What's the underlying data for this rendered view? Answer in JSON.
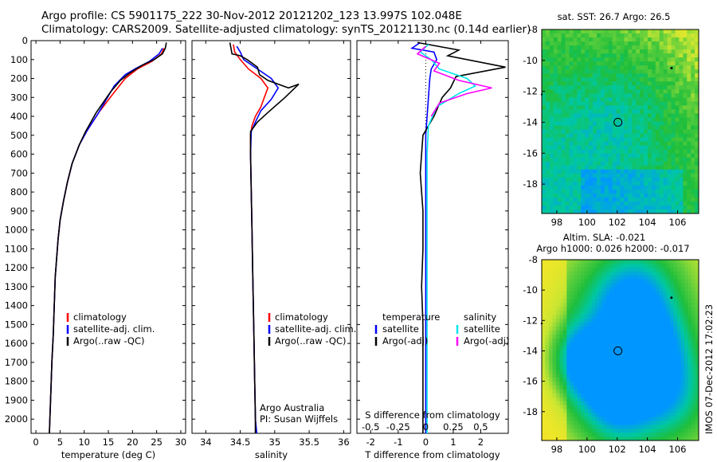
{
  "title_line1": "Argo profile: CS 5901175_222 30-Nov-2012 20121202_123 13.997S 102.048E",
  "title_line2": "Climatology: CARS2009. Satellite-adjusted climatology: synTS_20121130.nc (0.14d earlier)",
  "colors": {
    "climatology": "#ff0000",
    "satellite": "#0000ff",
    "argo": "#000000",
    "salinity_satellite": "#00e5ee",
    "salinity_argo": "#ff00ff"
  },
  "chart_data": [
    {
      "id": "temperature",
      "type": "line",
      "xlabel": "temperature (deg C)",
      "ylabel": "",
      "xlim": [
        -1,
        31
      ],
      "ylim": [
        2075,
        0
      ],
      "xticks": [
        0,
        5,
        10,
        15,
        20,
        25,
        30
      ],
      "yticks": [
        0,
        100,
        200,
        300,
        400,
        500,
        600,
        700,
        800,
        900,
        1000,
        1100,
        1200,
        1300,
        1400,
        1500,
        1600,
        1700,
        1800,
        1900,
        2000
      ],
      "legend": [
        "climatology",
        "satellite-adj. clim.",
        "Argo(..raw -QC)"
      ],
      "legend_position": "lower-middle",
      "series": [
        {
          "name": "climatology",
          "color": "#ff0000",
          "points": [
            [
              26.5,
              40
            ],
            [
              26,
              70
            ],
            [
              24,
              110
            ],
            [
              21,
              150
            ],
            [
              18.5,
              200
            ],
            [
              16,
              280
            ],
            [
              13,
              380
            ],
            [
              10.5,
              480
            ],
            [
              9,
              550
            ],
            [
              7.5,
              650
            ],
            [
              6.5,
              750
            ],
            [
              5.7,
              850
            ],
            [
              5,
              950
            ],
            [
              4.6,
              1050
            ],
            [
              4.3,
              1150
            ],
            [
              4,
              1250
            ],
            [
              3.8,
              1400
            ],
            [
              3.6,
              1550
            ],
            [
              3.3,
              1700
            ],
            [
              3.1,
              1850
            ],
            [
              2.9,
              2000
            ],
            [
              2.8,
              2075
            ]
          ]
        },
        {
          "name": "satellite-adj. clim.",
          "color": "#0000ff",
          "points": [
            [
              26.2,
              40
            ],
            [
              25.5,
              70
            ],
            [
              23.5,
              110
            ],
            [
              20.5,
              150
            ],
            [
              18.5,
              180
            ],
            [
              16.2,
              240
            ],
            [
              13,
              380
            ],
            [
              10.5,
              480
            ],
            [
              9,
              550
            ],
            [
              7.5,
              650
            ],
            [
              6.5,
              750
            ],
            [
              5.7,
              850
            ],
            [
              5,
              950
            ],
            [
              4.6,
              1050
            ],
            [
              4.3,
              1150
            ],
            [
              4,
              1250
            ],
            [
              3.8,
              1400
            ],
            [
              3.6,
              1550
            ],
            [
              3.3,
              1700
            ],
            [
              3.1,
              1850
            ],
            [
              2.9,
              2000
            ],
            [
              2.8,
              2075
            ]
          ]
        },
        {
          "name": "Argo(..raw -QC)",
          "color": "#000000",
          "points": [
            [
              27,
              10
            ],
            [
              26.8,
              40
            ],
            [
              26.2,
              70
            ],
            [
              24.5,
              100
            ],
            [
              22,
              130
            ],
            [
              19.5,
              170
            ],
            [
              17.5,
              210
            ],
            [
              15.5,
              270
            ],
            [
              12.5,
              380
            ],
            [
              10.3,
              480
            ],
            [
              9,
              550
            ],
            [
              7.5,
              650
            ],
            [
              6.5,
              750
            ],
            [
              5.7,
              850
            ],
            [
              5,
              950
            ],
            [
              4.6,
              1050
            ],
            [
              4.3,
              1150
            ],
            [
              4,
              1250
            ],
            [
              3.8,
              1400
            ],
            [
              3.6,
              1550
            ],
            [
              3.3,
              1700
            ],
            [
              3.1,
              1850
            ],
            [
              2.9,
              2000
            ],
            [
              2.8,
              2075
            ]
          ]
        }
      ]
    },
    {
      "id": "salinity",
      "type": "line",
      "xlabel": "salinity",
      "ylabel": "",
      "xlim": [
        33.8,
        36.1
      ],
      "ylim": [
        2075,
        0
      ],
      "xticks": [
        34,
        34.5,
        35,
        35.5,
        36
      ],
      "legend": [
        "climatology",
        "satellite-adj. clim.",
        "Argo(..raw -QC)"
      ],
      "legend_position": "lower-right",
      "annotation": [
        "Argo Australia",
        "PI: Susan Wijffels"
      ],
      "series": [
        {
          "name": "climatology",
          "color": "#ff0000",
          "points": [
            [
              34.4,
              20
            ],
            [
              34.42,
              60
            ],
            [
              34.5,
              100
            ],
            [
              34.62,
              150
            ],
            [
              34.8,
              200
            ],
            [
              34.9,
              250
            ],
            [
              34.85,
              300
            ],
            [
              34.8,
              350
            ],
            [
              34.72,
              400
            ],
            [
              34.67,
              450
            ],
            [
              34.65,
              500
            ],
            [
              34.65,
              600
            ],
            [
              34.66,
              800
            ],
            [
              34.67,
              1000
            ],
            [
              34.68,
              1200
            ],
            [
              34.69,
              1400
            ],
            [
              34.7,
              1600
            ],
            [
              34.71,
              1800
            ],
            [
              34.72,
              2000
            ],
            [
              34.72,
              2075
            ]
          ]
        },
        {
          "name": "satellite-adj. clim.",
          "color": "#0000ff",
          "points": [
            [
              34.45,
              30
            ],
            [
              34.5,
              60
            ],
            [
              34.55,
              100
            ],
            [
              34.75,
              150
            ],
            [
              34.95,
              200
            ],
            [
              35.05,
              250
            ],
            [
              34.95,
              310
            ],
            [
              34.8,
              370
            ],
            [
              34.72,
              430
            ],
            [
              34.66,
              480
            ],
            [
              34.65,
              600
            ],
            [
              34.66,
              800
            ],
            [
              34.67,
              1000
            ],
            [
              34.68,
              1200
            ],
            [
              34.69,
              1400
            ],
            [
              34.7,
              1600
            ],
            [
              34.71,
              1800
            ],
            [
              34.72,
              2000
            ],
            [
              34.74,
              2075
            ]
          ]
        },
        {
          "name": "Argo(..raw -QC)",
          "color": "#000000",
          "points": [
            [
              34.35,
              10
            ],
            [
              34.38,
              70
            ],
            [
              34.5,
              80
            ],
            [
              34.6,
              100
            ],
            [
              34.75,
              140
            ],
            [
              34.78,
              180
            ],
            [
              34.9,
              210
            ],
            [
              35.2,
              250
            ],
            [
              35.35,
              230
            ],
            [
              35.15,
              300
            ],
            [
              34.9,
              380
            ],
            [
              34.75,
              430
            ],
            [
              34.65,
              480
            ],
            [
              34.65,
              520
            ],
            [
              34.65,
              600
            ],
            [
              34.66,
              800
            ],
            [
              34.67,
              1000
            ],
            [
              34.68,
              1200
            ],
            [
              34.69,
              1400
            ],
            [
              34.7,
              1600
            ],
            [
              34.71,
              1800
            ],
            [
              34.72,
              2000
            ],
            [
              34.72,
              2075
            ]
          ]
        }
      ]
    },
    {
      "id": "differences",
      "type": "line",
      "xlabel": "T difference from climatology",
      "xlabel_top": "S difference from climatology",
      "ylabel": "",
      "xlim": [
        -2.5,
        3
      ],
      "ylim": [
        2075,
        0
      ],
      "xticks": [
        -2,
        -1,
        0,
        1,
        2
      ],
      "xticks_top": [
        -0.5,
        -0.25,
        0,
        0.25,
        0.5
      ],
      "legend_groups": [
        {
          "title": "temperature",
          "items": [
            "satellite",
            "Argo(-adj)"
          ]
        },
        {
          "title": "salinity",
          "items": [
            "satellite",
            "Argo(-adj)"
          ]
        }
      ],
      "legend_position": "lower-middle",
      "series": [
        {
          "name": "temperature satellite",
          "color": "#0000ff",
          "points": [
            [
              -0.2,
              10
            ],
            [
              -0.5,
              40
            ],
            [
              0.3,
              60
            ],
            [
              0.4,
              100
            ],
            [
              0.2,
              150
            ],
            [
              0.15,
              200
            ],
            [
              0.1,
              300
            ],
            [
              0.05,
              400
            ],
            [
              0,
              500
            ],
            [
              0,
              2075
            ]
          ]
        },
        {
          "name": "temperature Argo(-adj)",
          "color": "#000000",
          "points": [
            [
              -0.3,
              10
            ],
            [
              1.2,
              50
            ],
            [
              0.8,
              80
            ],
            [
              2.9,
              140
            ],
            [
              1.1,
              190
            ],
            [
              0.9,
              250
            ],
            [
              0.6,
              300
            ],
            [
              0.3,
              400
            ],
            [
              0.1,
              450
            ],
            [
              -0.1,
              500
            ],
            [
              -0.2,
              700
            ],
            [
              -0.1,
              900
            ],
            [
              -0.1,
              1100
            ],
            [
              -0.15,
              1300
            ],
            [
              -0.1,
              1500
            ],
            [
              -0.1,
              1800
            ],
            [
              -0.1,
              2075
            ]
          ]
        },
        {
          "name": "salinity satellite",
          "color": "#00e5ee",
          "points": [
            [
              0.1,
              20
            ],
            [
              -0.2,
              60
            ],
            [
              0.2,
              100
            ],
            [
              0.5,
              150
            ],
            [
              1.5,
              200
            ],
            [
              1.8,
              240
            ],
            [
              1.2,
              280
            ],
            [
              0.4,
              350
            ],
            [
              0.1,
              450
            ],
            [
              0.05,
              600
            ],
            [
              0.05,
              1000
            ],
            [
              0.05,
              1600
            ],
            [
              0.05,
              2075
            ]
          ]
        },
        {
          "name": "salinity Argo(-adj)",
          "color": "#ff00ff",
          "points": [
            [
              0,
              30
            ],
            [
              -0.3,
              70
            ],
            [
              0.5,
              120
            ],
            [
              0.3,
              160
            ],
            [
              1.2,
              210
            ],
            [
              2.4,
              250
            ],
            [
              1.5,
              280
            ],
            [
              0.5,
              330
            ],
            [
              0.2,
              400
            ]
          ]
        }
      ]
    },
    {
      "id": "sst-map",
      "type": "heatmap",
      "title": "sat. SST: 26.7  Argo: 26.5",
      "xlim": [
        97,
        107.4
      ],
      "ylim": [
        -19.9,
        -8
      ],
      "xticks": [
        98,
        100,
        102,
        104,
        106
      ],
      "yticks": [
        -8,
        -10,
        -12,
        -14,
        -16,
        -18
      ],
      "marker": {
        "lon": 102.05,
        "lat": -14.0
      }
    },
    {
      "id": "sla-map",
      "type": "heatmap",
      "title": "Altim. SLA: -0.021",
      "subtitle": "Argo h1000: 0.026 h2000: -0.017",
      "xlim": [
        97,
        107.4
      ],
      "ylim": [
        -19.9,
        -8
      ],
      "xticks": [
        98,
        100,
        102,
        104,
        106
      ],
      "yticks": [
        -8,
        -10,
        -12,
        -14,
        -16,
        -18
      ],
      "marker": {
        "lon": 102.05,
        "lat": -14.0
      }
    }
  ],
  "side_label": "IMOS 07-Dec-2012 17:02:23"
}
